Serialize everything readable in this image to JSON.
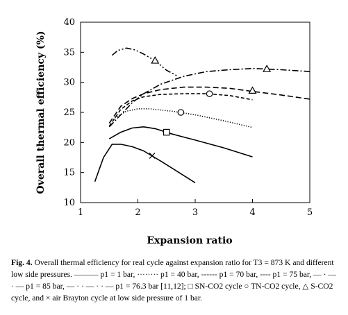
{
  "caption": {
    "label": "Fig. 4.",
    "text": "Overall thermal efficiency for real cycle against expansion ratio for T3 = 873 K and different low side pressures. ——— p1 = 1 bar, ········ p1 = 40 bar, ------ p1 = 70 bar, ---- p1 = 75 bar, — · — · — p1 = 85 bar, — · · — · · — p1 = 76.3 bar [11,12]; □ SN-CO2 cycle ○ TN-CO2 cycle, △ S-CO2 cycle, and × air Brayton cycle at low side pressure of 1 bar."
  },
  "chart_data": {
    "type": "line",
    "title": "",
    "xlabel": "Expansion ratio",
    "ylabel": "Overall thermal efficiency (%)",
    "xlim": [
      1,
      5
    ],
    "ylim": [
      10,
      40
    ],
    "xticks": [
      "1",
      "2",
      "3",
      "4",
      "5"
    ],
    "yticks": [
      "10",
      "15",
      "20",
      "25",
      "30",
      "35",
      "40"
    ],
    "grid": false,
    "series": [
      {
        "style": "solid",
        "marker": "cross",
        "marker_at": [
          2.25,
          17.8
        ],
        "points": [
          [
            1.25,
            13.5
          ],
          [
            1.4,
            17.5
          ],
          [
            1.55,
            19.7
          ],
          [
            1.7,
            19.7
          ],
          [
            1.9,
            19.3
          ],
          [
            2.1,
            18.6
          ],
          [
            2.4,
            16.9
          ],
          [
            2.7,
            15.1
          ],
          [
            3.0,
            13.3
          ]
        ]
      },
      {
        "style": "solid",
        "marker": "square",
        "marker_at": [
          2.5,
          21.7
        ],
        "points": [
          [
            1.5,
            20.6
          ],
          [
            1.7,
            21.7
          ],
          [
            1.9,
            22.4
          ],
          [
            2.1,
            22.6
          ],
          [
            2.3,
            22.3
          ],
          [
            2.6,
            21.4
          ],
          [
            3.0,
            20.4
          ],
          [
            3.5,
            19.1
          ],
          [
            4.0,
            17.6
          ]
        ]
      },
      {
        "style": "dotted",
        "marker": "circle",
        "marker_at": [
          2.75,
          25.0
        ],
        "points": [
          [
            1.6,
            24.1
          ],
          [
            1.8,
            25.2
          ],
          [
            2.0,
            25.6
          ],
          [
            2.2,
            25.6
          ],
          [
            2.6,
            25.2
          ],
          [
            3.0,
            24.6
          ],
          [
            3.5,
            23.6
          ],
          [
            4.0,
            22.5
          ]
        ]
      },
      {
        "style": "dashed",
        "marker": "circle",
        "marker_at": [
          3.25,
          28.1
        ],
        "points": [
          [
            1.5,
            22.7
          ],
          [
            1.7,
            25.5
          ],
          [
            1.9,
            26.9
          ],
          [
            2.1,
            27.6
          ],
          [
            2.4,
            28.0
          ],
          [
            2.8,
            28.1
          ],
          [
            3.2,
            28.1
          ],
          [
            3.6,
            27.8
          ],
          [
            4.0,
            27.1
          ]
        ]
      },
      {
        "style": "long-dashed",
        "marker": "triangle",
        "marker_at": [
          4.0,
          28.6
        ],
        "points": [
          [
            1.5,
            23.2
          ],
          [
            1.7,
            26.0
          ],
          [
            1.9,
            27.3
          ],
          [
            2.1,
            28.1
          ],
          [
            2.4,
            28.8
          ],
          [
            2.8,
            29.2
          ],
          [
            3.2,
            29.2
          ],
          [
            3.6,
            29.0
          ],
          [
            4.0,
            28.5
          ],
          [
            4.5,
            27.9
          ],
          [
            5.0,
            27.2
          ]
        ]
      },
      {
        "style": "dash-dot",
        "marker": "triangle",
        "marker_at": [
          4.25,
          32.2
        ],
        "points": [
          [
            1.5,
            22.6
          ],
          [
            1.7,
            24.6
          ],
          [
            1.9,
            26.6
          ],
          [
            2.1,
            28.1
          ],
          [
            2.4,
            29.7
          ],
          [
            2.8,
            31.0
          ],
          [
            3.2,
            31.8
          ],
          [
            3.6,
            32.1
          ],
          [
            4.0,
            32.3
          ],
          [
            4.5,
            32.1
          ],
          [
            5.0,
            31.8
          ]
        ]
      },
      {
        "style": "dash-dot-dot",
        "marker": "triangle",
        "marker_at": [
          2.3,
          33.6
        ],
        "points": [
          [
            1.55,
            34.5
          ],
          [
            1.65,
            35.3
          ],
          [
            1.8,
            35.7
          ],
          [
            1.95,
            35.4
          ],
          [
            2.1,
            34.7
          ],
          [
            2.3,
            33.6
          ],
          [
            2.5,
            32.0
          ],
          [
            2.7,
            31.0
          ]
        ]
      }
    ]
  }
}
